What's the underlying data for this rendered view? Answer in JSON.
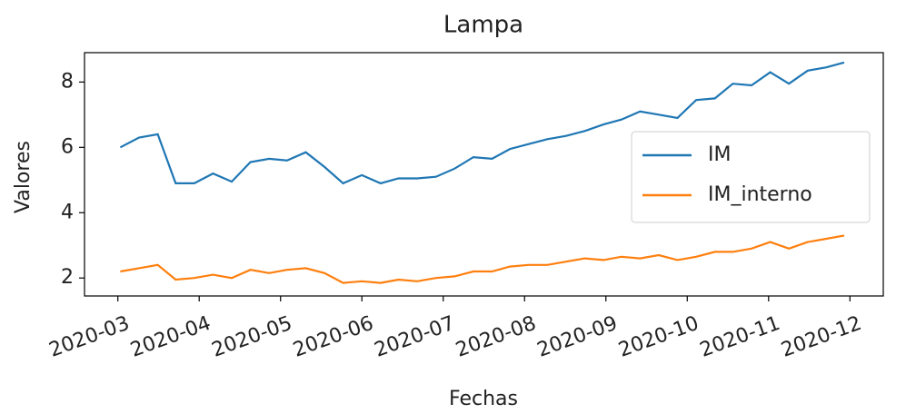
{
  "chart_data": {
    "type": "line",
    "title": "Lampa",
    "x_label": "Fechas",
    "y_label": "Valores",
    "x": [
      3.03,
      3.26,
      3.49,
      3.71,
      3.94,
      4.17,
      4.4,
      4.63,
      4.86,
      5.08,
      5.31,
      5.54,
      5.77,
      6.0,
      6.23,
      6.45,
      6.68,
      6.91,
      7.14,
      7.37,
      7.6,
      7.82,
      8.05,
      8.28,
      8.51,
      8.74,
      8.97,
      9.19,
      9.42,
      9.65,
      9.88,
      10.11,
      10.34,
      10.56,
      10.79,
      11.02,
      11.25,
      11.48,
      11.71,
      11.93
    ],
    "series": [
      {
        "name": "IM",
        "color": "#1f77b4",
        "values": [
          6.0,
          6.3,
          6.4,
          4.9,
          4.9,
          5.2,
          4.95,
          5.55,
          5.65,
          5.6,
          5.85,
          5.4,
          4.9,
          5.15,
          4.9,
          5.05,
          5.05,
          5.1,
          5.35,
          5.7,
          5.65,
          5.95,
          6.1,
          6.25,
          6.35,
          6.5,
          6.7,
          6.85,
          7.1,
          7.0,
          6.9,
          7.45,
          7.5,
          7.95,
          7.9,
          8.3,
          7.95,
          8.35,
          8.45,
          8.6
        ]
      },
      {
        "name": "IM_interno",
        "color": "#ff7f0e",
        "values": [
          2.2,
          2.3,
          2.4,
          1.95,
          2.0,
          2.1,
          2.0,
          2.25,
          2.15,
          2.25,
          2.3,
          2.15,
          1.85,
          1.9,
          1.85,
          1.95,
          1.9,
          2.0,
          2.05,
          2.2,
          2.2,
          2.35,
          2.4,
          2.4,
          2.5,
          2.6,
          2.55,
          2.65,
          2.6,
          2.7,
          2.55,
          2.65,
          2.8,
          2.8,
          2.9,
          3.1,
          2.9,
          3.1,
          3.2,
          3.3
        ]
      }
    ],
    "xlim": [
      2.59,
      12.41
    ],
    "xticks": [
      {
        "value": 3,
        "label": "2020-03"
      },
      {
        "value": 4,
        "label": "2020-04"
      },
      {
        "value": 5,
        "label": "2020-05"
      },
      {
        "value": 6,
        "label": "2020-06"
      },
      {
        "value": 7,
        "label": "2020-07"
      },
      {
        "value": 8,
        "label": "2020-08"
      },
      {
        "value": 9,
        "label": "2020-09"
      },
      {
        "value": 10,
        "label": "2020-10"
      },
      {
        "value": 11,
        "label": "2020-11"
      },
      {
        "value": 12,
        "label": "2020-12"
      }
    ],
    "ylim": [
      1.45,
      8.9
    ],
    "yticks": [
      2,
      4,
      6,
      8
    ],
    "grid": false,
    "legend": "right"
  }
}
